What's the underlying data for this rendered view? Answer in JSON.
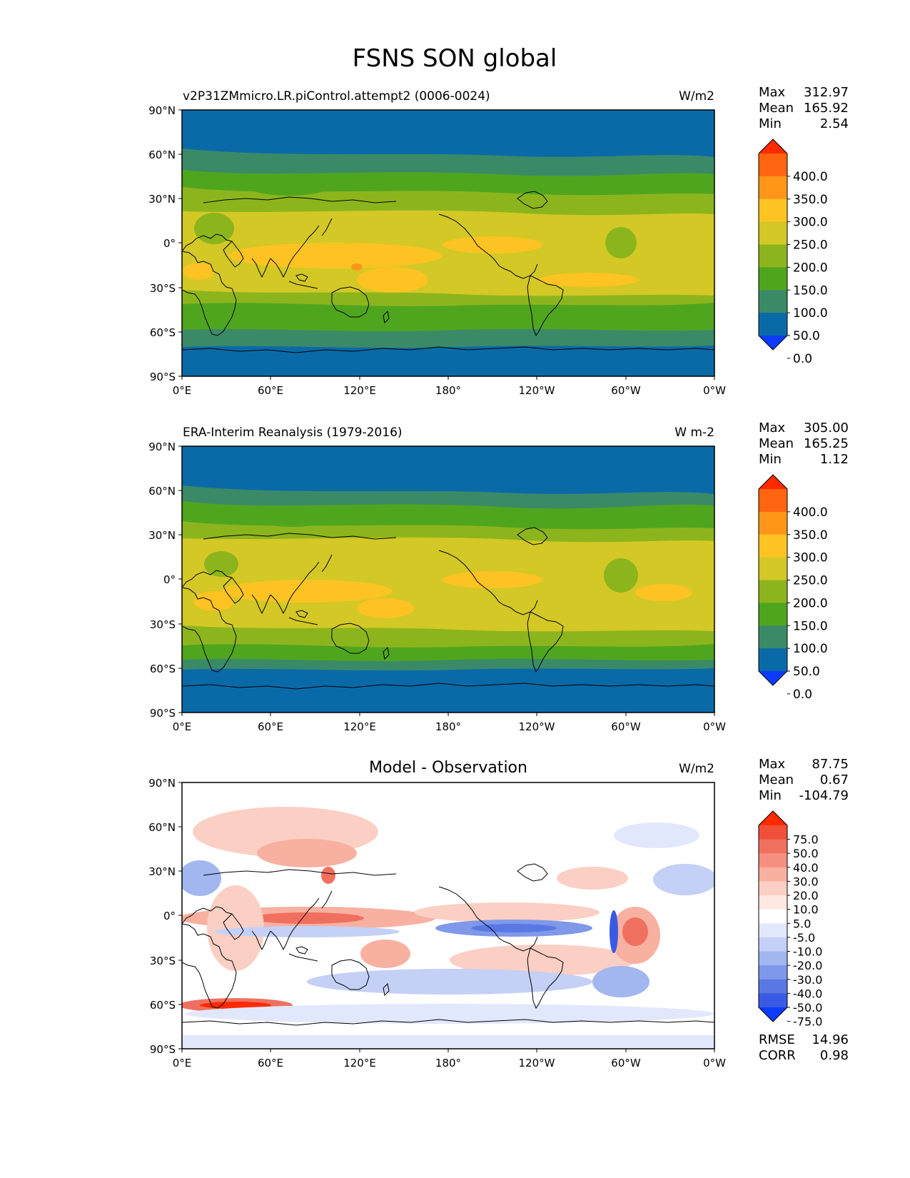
{
  "figure_title": "FSNS SON global",
  "lon_ticks": [
    "0°E",
    "60°E",
    "120°E",
    "180°",
    "120°W",
    "60°W",
    "0°W"
  ],
  "lat_ticks": [
    "90°N",
    "60°N",
    "30°N",
    "0°",
    "30°S",
    "60°S",
    "90°S"
  ],
  "panels": [
    {
      "id": "model",
      "left_title": "v2P31ZMmicro.LR.piControl.attempt2 (0006-0024)",
      "center_title": "",
      "units": "W/m2",
      "stats": [
        {
          "label": "Max",
          "value": "312.97"
        },
        {
          "label": "Mean",
          "value": "165.92"
        },
        {
          "label": "Min",
          "value": "2.54"
        }
      ],
      "colorbar": {
        "labels": [
          "400.0",
          "350.0",
          "300.0",
          "250.0",
          "200.0",
          "150.0",
          "100.0",
          "50.0",
          "0.0"
        ],
        "colors": [
          "#ff2a00",
          "#ff6410",
          "#ff9618",
          "#fcc322",
          "#d3c825",
          "#8cb51d",
          "#50a51e",
          "#3a8a68",
          "#0a6aa8",
          "#0a3cff"
        ]
      },
      "extra_stats": []
    },
    {
      "id": "obs",
      "left_title": "ERA-Interim Reanalysis (1979-2016)",
      "center_title": "",
      "units": "W m-2",
      "stats": [
        {
          "label": "Max",
          "value": "305.00"
        },
        {
          "label": "Mean",
          "value": "165.25"
        },
        {
          "label": "Min",
          "value": "1.12"
        }
      ],
      "colorbar": {
        "labels": [
          "400.0",
          "350.0",
          "300.0",
          "250.0",
          "200.0",
          "150.0",
          "100.0",
          "50.0",
          "0.0"
        ],
        "colors": [
          "#ff2a00",
          "#ff6410",
          "#ff9618",
          "#fcc322",
          "#d3c825",
          "#8cb51d",
          "#50a51e",
          "#3a8a68",
          "#0a6aa8",
          "#0a3cff"
        ]
      },
      "extra_stats": []
    },
    {
      "id": "diff",
      "left_title": "",
      "center_title": "Model - Observation",
      "units": "W/m2",
      "stats": [
        {
          "label": "Max",
          "value": "87.75"
        },
        {
          "label": "Mean",
          "value": "0.67"
        },
        {
          "label": "Min",
          "value": "-104.79"
        }
      ],
      "colorbar": {
        "labels": [
          "75.0",
          "50.0",
          "40.0",
          "30.0",
          "20.0",
          "10.0",
          "5.0",
          "-5.0",
          "-10.0",
          "-20.0",
          "-30.0",
          "-40.0",
          "-50.0",
          "-75.0"
        ],
        "colors": [
          "#ff2a00",
          "#f0503a",
          "#f07060",
          "#f59080",
          "#f8b0a0",
          "#fbcfc4",
          "#fde8e2",
          "#ffffff",
          "#e2e8fb",
          "#c4d0f6",
          "#a2b6f0",
          "#7f98ea",
          "#5a78e4",
          "#3a5ae4",
          "#0a3cff"
        ]
      },
      "extra_stats": [
        {
          "label": "RMSE",
          "value": "14.96"
        },
        {
          "label": "CORR",
          "value": "0.98"
        }
      ]
    }
  ],
  "colors": {
    "ocean_polar": "#0a6aa8",
    "teal": "#3a8a68",
    "green": "#50a51e",
    "light_green": "#8cb51d",
    "olive": "#d3c825",
    "yellow": "#fcc322",
    "diff_background": "#ffffff"
  }
}
